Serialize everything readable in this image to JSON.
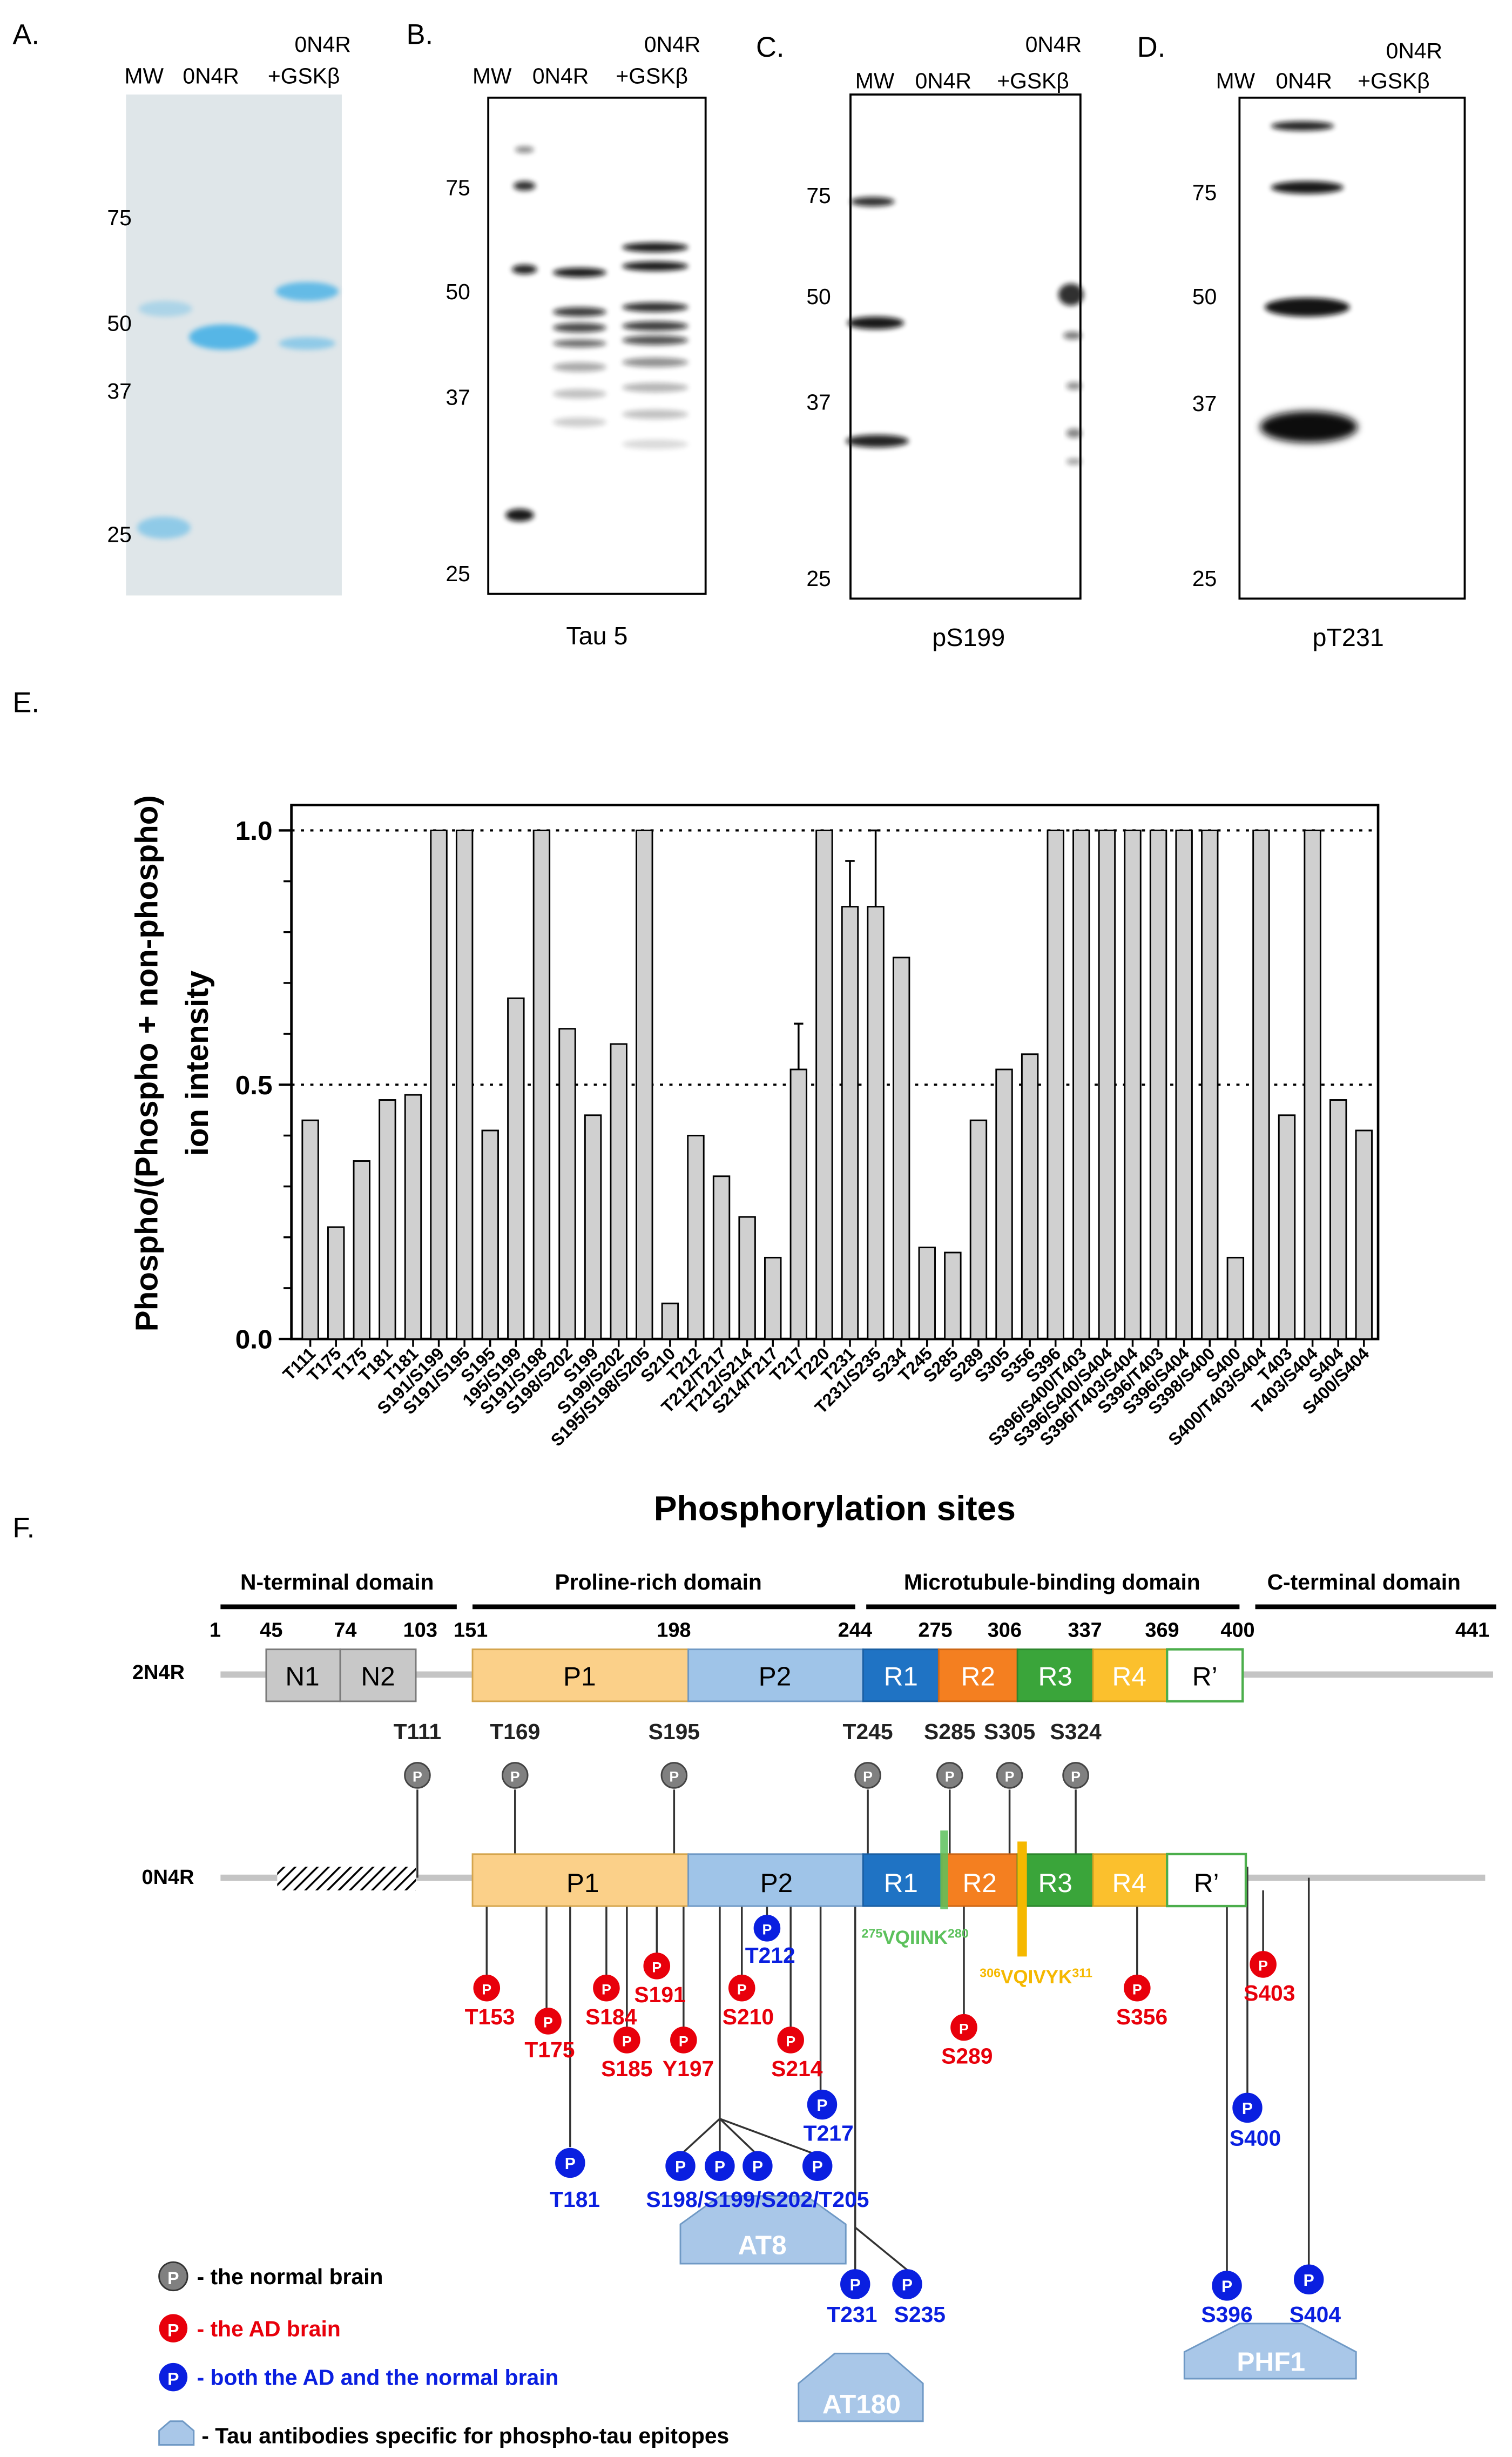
{
  "colors": {
    "coomassie": "#4fb4e6",
    "p1": "#fbd089",
    "p2": "#9fc4e8",
    "r1": "#1f73c4",
    "r2": "#f47f20",
    "r3": "#3aa53a",
    "r4": "#fbc02d",
    "rprime_border": "#4cae4c",
    "normal_brain": "#808080",
    "ad_brain": "#e8000b",
    "both": "#0a1fe0",
    "antibody": "#a9c7e8",
    "vqiink": "#5cc15c",
    "vqivyk": "#f5b800",
    "bar_fill": "#d0d0d0"
  },
  "panels": {
    "A": {
      "letter": "A.",
      "lane_mw": "MW",
      "lane_0n4r": "0N4R",
      "lane_gsk_top": "0N4R",
      "lane_gsk_bottom": "+GSKβ",
      "markers": [
        "75",
        "50",
        "37",
        "25"
      ]
    },
    "B": {
      "letter": "B.",
      "lane_mw": "MW",
      "lane_0n4r": "0N4R",
      "lane_gsk_top": "0N4R",
      "lane_gsk_bottom": "+GSKβ",
      "markers": [
        "75",
        "50",
        "37",
        "25"
      ],
      "caption": "Tau 5"
    },
    "C": {
      "letter": "C.",
      "lane_mw": "MW",
      "lane_0n4r": "0N4R",
      "lane_gsk_top": "0N4R",
      "lane_gsk_bottom": "+GSKβ",
      "markers": [
        "75",
        "50",
        "37",
        "25"
      ],
      "caption": "pS199"
    },
    "D": {
      "letter": "D.",
      "lane_mw": "MW",
      "lane_0n4r": "0N4R",
      "lane_gsk_top": "0N4R",
      "lane_gsk_bottom": "+GSKβ",
      "markers": [
        "75",
        "50",
        "37",
        "25"
      ],
      "caption": "pT231"
    },
    "E": {
      "letter": "E."
    },
    "F": {
      "letter": "F."
    }
  },
  "chart_data": {
    "type": "bar",
    "xlabel": "Phosphorylation sites",
    "ylabel_line1": "Phospho/(Phospho + non-phospho)",
    "ylabel_line2": "ion intensity",
    "ylim": [
      0.0,
      1.05
    ],
    "yticks": [
      "0.0",
      "0.5",
      "1.0"
    ],
    "reference_lines": [
      0.5,
      1.0
    ],
    "grid": false,
    "categories": [
      "T111",
      "T175",
      "T175",
      "T181",
      "T181",
      "S191/S199",
      "S191/S195",
      "S195",
      "195/S199",
      "S191/S198",
      "S198/S202",
      "S199",
      "S199/S202",
      "S195/S198/S205",
      "S210",
      "T212",
      "T212/T217",
      "T212/S214",
      "S214/T217",
      "T217",
      "T220",
      "T231",
      "T231/S235",
      "S234",
      "T245",
      "S285",
      "S289",
      "S305",
      "S356",
      "S396",
      "S396/S400/T403",
      "S396/S400/S404",
      "S396/T403/S404",
      "S396/T403",
      "S396/S404",
      "S398/S400",
      "S400",
      "S400/T403/S404",
      "T403",
      "T403/S404",
      "S404",
      "S400/S404"
    ],
    "values": [
      0.43,
      0.22,
      0.35,
      0.47,
      0.48,
      1.0,
      1.0,
      0.41,
      0.67,
      1.0,
      0.61,
      0.44,
      0.58,
      1.0,
      0.07,
      0.4,
      0.32,
      0.24,
      0.16,
      0.53,
      1.0,
      0.85,
      0.85,
      0.75,
      0.18,
      0.17,
      0.43,
      0.53,
      0.56,
      1.0,
      1.0,
      1.0,
      1.0,
      1.0,
      1.0,
      1.0,
      0.16,
      1.0,
      0.44,
      1.0,
      0.47,
      0.41
    ],
    "errors": [
      0,
      0,
      0,
      0,
      0,
      0,
      0,
      0,
      0,
      0,
      0,
      0,
      0,
      0,
      0,
      0,
      0,
      0,
      0,
      0.09,
      0,
      0.09,
      0.15,
      0,
      0,
      0,
      0,
      0,
      0,
      0,
      0,
      0,
      0,
      0,
      0,
      0,
      0,
      0,
      0,
      0,
      0,
      0
    ]
  },
  "diagram": {
    "domains": {
      "nterm": "N-terminal domain",
      "prolin": "Proline-rich domain",
      "mtbd": "Microtubule-binding domain",
      "cterm": "C-terminal domain"
    },
    "positions": [
      "1",
      "45",
      "74",
      "103",
      "151",
      "198",
      "244",
      "275",
      "306",
      "337",
      "369",
      "400",
      "441"
    ],
    "row_2n4r": "2N4R",
    "row_0n4r": "0N4R",
    "segments": {
      "n1": "N1",
      "n2": "N2",
      "p1": "P1",
      "p2": "P2",
      "r1": "R1",
      "r2": "R2",
      "r3": "R3",
      "r4": "R4",
      "rp": "R’"
    },
    "normal_sites": [
      "T111",
      "T169",
      "S195",
      "T245",
      "S285",
      "S305",
      "S324"
    ],
    "ad_sites": [
      "T153",
      "T175",
      "S184",
      "S185",
      "S191",
      "Y197",
      "S210",
      "S214",
      "S289",
      "S356",
      "S403"
    ],
    "both_sites": {
      "t212": "T212",
      "t217": "T217",
      "t181": "T181",
      "at8_group": "S198/S199/S202/T205",
      "t231": "T231",
      "s235": "S235",
      "s400": "S400",
      "s396": "S396",
      "s404": "S404"
    },
    "motif1": {
      "pre": "275",
      "seq": "VQIINK",
      "post": "280"
    },
    "motif2": {
      "pre": "306",
      "seq": "VQIVYK",
      "post": "311"
    },
    "antibodies": {
      "at8": "AT8",
      "at180": "AT180",
      "phf1": "PHF1"
    },
    "pin": "P",
    "legend": {
      "normal": "- the normal brain",
      "ad": "- the AD brain",
      "both": "- both the AD and the normal brain",
      "antibody": "- Tau antibodies specific for phospho-tau epitopes"
    }
  }
}
